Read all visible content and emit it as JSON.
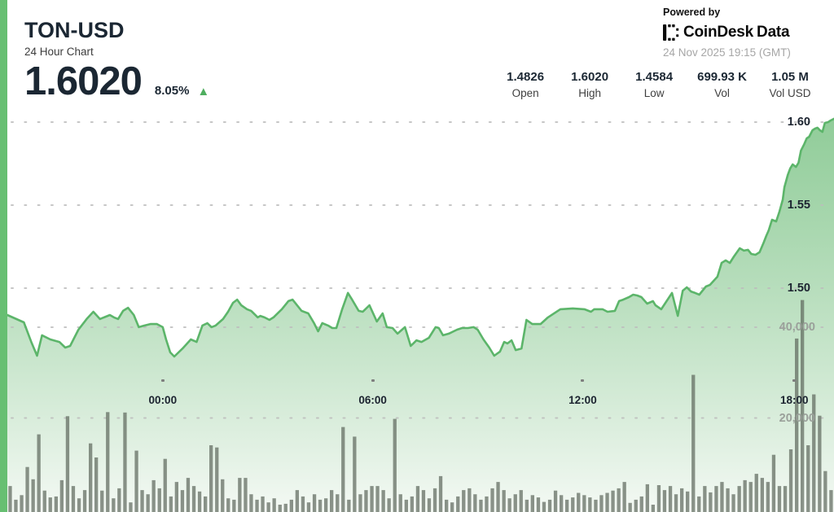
{
  "header": {
    "symbol": "TON-USD",
    "subtitle": "24 Hour Chart",
    "price": "1.6020",
    "change_pct": "8.05%",
    "up_arrow": "▲",
    "powered_by": "Powered by",
    "brand_1": "CoinDesk",
    "brand_2": "Data",
    "timestamp": "24 Nov 2025 19:15 (GMT)"
  },
  "stats": {
    "items": [
      {
        "value": "1.4826",
        "label": "Open"
      },
      {
        "value": "1.6020",
        "label": "High"
      },
      {
        "value": "1.4584",
        "label": "Low"
      },
      {
        "value": "699.93 K",
        "label": "Vol"
      },
      {
        "value": "1.05 M",
        "label": "Vol USD"
      }
    ]
  },
  "colors": {
    "accent_green": "#67bf72",
    "line_green": "#5cb56a",
    "area_top": "#7cc386",
    "area_bottom": "#f4f9f4",
    "volume_bar": "#5f6a5e",
    "grid_dot": "#bdbdbd",
    "navy_text": "#1b2733",
    "muted_text": "#a6a6a6",
    "up_triangle": "#4fae5f"
  },
  "chart_data": {
    "type": "area+bar",
    "title": "TON-USD 24 Hour Chart",
    "x_window": "24 hours ending 24 Nov 2025 19:15 GMT",
    "price_axis": {
      "side": "right",
      "gridlines": [
        1.5,
        1.55,
        1.6
      ],
      "tick_labels": [
        "1.50",
        "1.55",
        "1.60"
      ]
    },
    "volume_axis": {
      "side": "right",
      "gridlines": [
        20000,
        40000
      ],
      "tick_labels": [
        "20,000",
        "40,000"
      ]
    },
    "time_ticks": [
      {
        "label": "00:00",
        "t": 0.188
      },
      {
        "label": "06:00",
        "t": 0.442
      },
      {
        "label": "12:00",
        "t": 0.696
      },
      {
        "label": "18:00",
        "t": 0.952
      }
    ],
    "price_series": [
      [
        0.0,
        1.4838
      ],
      [
        0.02,
        1.4794
      ],
      [
        0.029,
        1.4676
      ],
      [
        0.036,
        1.4593
      ],
      [
        0.042,
        1.4716
      ],
      [
        0.052,
        1.4691
      ],
      [
        0.063,
        1.4676
      ],
      [
        0.07,
        1.4642
      ],
      [
        0.076,
        1.4652
      ],
      [
        0.086,
        1.475
      ],
      [
        0.096,
        1.4814
      ],
      [
        0.104,
        1.4858
      ],
      [
        0.112,
        1.4814
      ],
      [
        0.124,
        1.4838
      ],
      [
        0.129,
        1.4824
      ],
      [
        0.134,
        1.4814
      ],
      [
        0.14,
        1.4863
      ],
      [
        0.146,
        1.4882
      ],
      [
        0.153,
        1.4838
      ],
      [
        0.159,
        1.4765
      ],
      [
        0.166,
        1.4775
      ],
      [
        0.173,
        1.4784
      ],
      [
        0.181,
        1.4784
      ],
      [
        0.188,
        1.4765
      ],
      [
        0.192,
        1.4691
      ],
      [
        0.197,
        1.4613
      ],
      [
        0.202,
        1.4588
      ],
      [
        0.212,
        1.4637
      ],
      [
        0.222,
        1.4691
      ],
      [
        0.229,
        1.4676
      ],
      [
        0.236,
        1.4775
      ],
      [
        0.242,
        1.4789
      ],
      [
        0.247,
        1.4765
      ],
      [
        0.252,
        1.4775
      ],
      [
        0.261,
        1.4814
      ],
      [
        0.267,
        1.4858
      ],
      [
        0.273,
        1.4912
      ],
      [
        0.278,
        1.4931
      ],
      [
        0.283,
        1.4897
      ],
      [
        0.29,
        1.4873
      ],
      [
        0.295,
        1.4863
      ],
      [
        0.303,
        1.4824
      ],
      [
        0.306,
        1.4833
      ],
      [
        0.311,
        1.4824
      ],
      [
        0.317,
        1.4809
      ],
      [
        0.322,
        1.4824
      ],
      [
        0.332,
        1.4873
      ],
      [
        0.34,
        1.4922
      ],
      [
        0.345,
        1.4931
      ],
      [
        0.356,
        1.4863
      ],
      [
        0.364,
        1.4848
      ],
      [
        0.371,
        1.4789
      ],
      [
        0.376,
        1.474
      ],
      [
        0.381,
        1.4789
      ],
      [
        0.388,
        1.4775
      ],
      [
        0.393,
        1.476
      ],
      [
        0.398,
        1.476
      ],
      [
        0.405,
        1.4873
      ],
      [
        0.412,
        1.4971
      ],
      [
        0.417,
        1.4931
      ],
      [
        0.425,
        1.4863
      ],
      [
        0.43,
        1.4858
      ],
      [
        0.438,
        1.4897
      ],
      [
        0.447,
        1.4799
      ],
      [
        0.454,
        1.4848
      ],
      [
        0.459,
        1.4765
      ],
      [
        0.466,
        1.476
      ],
      [
        0.472,
        1.4726
      ],
      [
        0.481,
        1.4765
      ],
      [
        0.488,
        1.4652
      ],
      [
        0.495,
        1.4686
      ],
      [
        0.501,
        1.4676
      ],
      [
        0.51,
        1.4701
      ],
      [
        0.518,
        1.4765
      ],
      [
        0.522,
        1.476
      ],
      [
        0.527,
        1.4716
      ],
      [
        0.534,
        1.4726
      ],
      [
        0.544,
        1.475
      ],
      [
        0.55,
        1.476
      ],
      [
        0.557,
        1.476
      ],
      [
        0.564,
        1.4765
      ],
      [
        0.569,
        1.475
      ],
      [
        0.576,
        1.4691
      ],
      [
        0.583,
        1.4642
      ],
      [
        0.589,
        1.4593
      ],
      [
        0.596,
        1.4618
      ],
      [
        0.601,
        1.4676
      ],
      [
        0.605,
        1.4667
      ],
      [
        0.61,
        1.4686
      ],
      [
        0.615,
        1.4627
      ],
      [
        0.622,
        1.4637
      ],
      [
        0.628,
        1.4809
      ],
      [
        0.635,
        1.4784
      ],
      [
        0.645,
        1.4784
      ],
      [
        0.654,
        1.4824
      ],
      [
        0.669,
        1.4873
      ],
      [
        0.684,
        1.4878
      ],
      [
        0.698,
        1.4873
      ],
      [
        0.706,
        1.4858
      ],
      [
        0.71,
        1.4873
      ],
      [
        0.72,
        1.4873
      ],
      [
        0.726,
        1.4858
      ],
      [
        0.735,
        1.4863
      ],
      [
        0.74,
        1.4922
      ],
      [
        0.745,
        1.4931
      ],
      [
        0.752,
        1.4946
      ],
      [
        0.757,
        1.4961
      ],
      [
        0.762,
        1.4956
      ],
      [
        0.767,
        1.4946
      ],
      [
        0.774,
        1.4907
      ],
      [
        0.781,
        1.4922
      ],
      [
        0.784,
        1.4897
      ],
      [
        0.791,
        1.4873
      ],
      [
        0.804,
        1.4971
      ],
      [
        0.811,
        1.4833
      ],
      [
        0.817,
        1.4985
      ],
      [
        0.822,
        1.5005
      ],
      [
        0.827,
        1.498
      ],
      [
        0.832,
        1.4971
      ],
      [
        0.837,
        1.4961
      ],
      [
        0.845,
        1.501
      ],
      [
        0.85,
        1.502
      ],
      [
        0.859,
        1.5069
      ],
      [
        0.864,
        1.5152
      ],
      [
        0.869,
        1.5167
      ],
      [
        0.874,
        1.5152
      ],
      [
        0.879,
        1.5191
      ],
      [
        0.886,
        1.524
      ],
      [
        0.891,
        1.5226
      ],
      [
        0.896,
        1.5231
      ],
      [
        0.9,
        1.5206
      ],
      [
        0.905,
        1.5201
      ],
      [
        0.91,
        1.5216
      ],
      [
        0.915,
        1.5275
      ],
      [
        0.918,
        1.5314
      ],
      [
        0.921,
        1.5348
      ],
      [
        0.925,
        1.5412
      ],
      [
        0.93,
        1.5402
      ],
      [
        0.934,
        1.5461
      ],
      [
        0.938,
        1.5534
      ],
      [
        0.94,
        1.5608
      ],
      [
        0.944,
        1.5681
      ],
      [
        0.947,
        1.5721
      ],
      [
        0.95,
        1.5745
      ],
      [
        0.954,
        1.573
      ],
      [
        0.957,
        1.5755
      ],
      [
        0.96,
        1.5828
      ],
      [
        0.964,
        1.5868
      ],
      [
        0.967,
        1.5902
      ],
      [
        0.97,
        1.5912
      ],
      [
        0.974,
        1.5951
      ],
      [
        0.977,
        1.5961
      ],
      [
        0.98,
        1.5966
      ],
      [
        0.983,
        1.5951
      ],
      [
        0.986,
        1.5941
      ],
      [
        0.989,
        1.5995
      ],
      [
        0.993,
        1.6
      ],
      [
        0.996,
        1.601
      ],
      [
        1.0,
        1.602
      ]
    ],
    "volume": [
      5000,
      2000,
      3000,
      9200,
      6500,
      16400,
      4000,
      2500,
      2700,
      6300,
      20400,
      5000,
      2300,
      4100,
      14400,
      11300,
      4000,
      21300,
      2300,
      4500,
      21200,
      1400,
      12800,
      4100,
      3200,
      6300,
      4500,
      11000,
      2700,
      5900,
      4100,
      6800,
      5000,
      3800,
      2700,
      14000,
      13500,
      6500,
      2300,
      2000,
      6800,
      6800,
      3200,
      2000,
      2700,
      1400,
      2300,
      900,
      1100,
      2000,
      4100,
      2700,
      1400,
      3200,
      2000,
      2300,
      4100,
      3200,
      18000,
      2000,
      15900,
      3200,
      4100,
      5000,
      5000,
      4100,
      2300,
      19800,
      3200,
      2000,
      2700,
      5000,
      4100,
      2300,
      4500,
      7200,
      2000,
      1400,
      2700,
      4100,
      4500,
      3200,
      2000,
      2700,
      4500,
      5900,
      4100,
      2300,
      3200,
      4100,
      2000,
      3000,
      2500,
      1500,
      2000,
      4000,
      3000,
      2000,
      2500,
      3500,
      3000,
      2500,
      2000,
      3000,
      3500,
      4000,
      4500,
      5900,
      1300,
      2000,
      2700,
      5400,
      900,
      5200,
      4100,
      5000,
      3200,
      4500,
      3800,
      29500,
      2700,
      5000,
      3600,
      5000,
      5900,
      4500,
      3200,
      5000,
      6300,
      5900,
      7700,
      6800,
      5900,
      11900,
      5000,
      5000,
      13100,
      37500,
      46000,
      14000,
      25200,
      20500,
      8300,
      4100
    ]
  }
}
